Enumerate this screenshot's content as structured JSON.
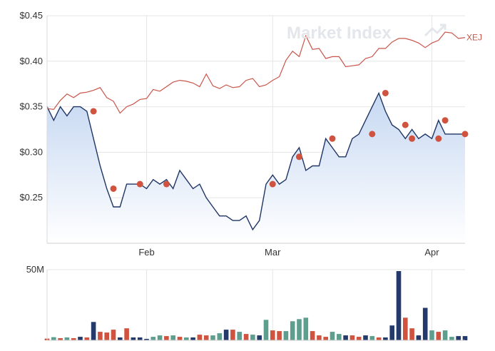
{
  "watermark": "Market Index",
  "colors": {
    "price_line": "#1f3564",
    "area_top": "#c6d8f2",
    "area_bottom": "#ffffff",
    "index_line": "#c9554a",
    "marker": "#d0533f",
    "vol_navy": "#233a6b",
    "vol_red": "#d0533f",
    "vol_teal": "#5e9e8e",
    "grid": "#e6e6e6"
  },
  "chart_data": [
    {
      "type": "line",
      "title": "",
      "ylim": [
        0.2,
        0.45
      ],
      "yticks": [
        0.25,
        0.3,
        0.35,
        0.4,
        0.45
      ],
      "ytick_labels": [
        "$0.25",
        "$0.30",
        "$0.35",
        "$0.40",
        "$0.45"
      ],
      "xlim": [
        0,
        63
      ],
      "xticks": [
        {
          "x": 15,
          "label": "Feb"
        },
        {
          "x": 34,
          "label": "Mar"
        },
        {
          "x": 58,
          "label": "Apr"
        }
      ],
      "grid": true,
      "series": [
        {
          "kind": "area",
          "values": [
            0.35,
            0.335,
            0.35,
            0.34,
            0.35,
            0.35,
            0.345,
            0.315,
            0.285,
            0.26,
            0.24,
            0.24,
            0.265,
            0.265,
            0.265,
            0.26,
            0.27,
            0.265,
            0.27,
            0.26,
            0.28,
            0.27,
            0.26,
            0.265,
            0.25,
            0.24,
            0.23,
            0.23,
            0.225,
            0.225,
            0.23,
            0.215,
            0.225,
            0.265,
            0.275,
            0.265,
            0.27,
            0.295,
            0.305,
            0.28,
            0.285,
            0.285,
            0.315,
            0.305,
            0.295,
            0.295,
            0.315,
            0.32,
            0.335,
            0.35,
            0.365,
            0.345,
            0.33,
            0.325,
            0.315,
            0.325,
            0.315,
            0.32,
            0.315,
            0.335,
            0.32,
            0.32,
            0.32,
            0.32
          ]
        },
        {
          "kind": "line",
          "name": "XEJ",
          "values": [
            0.348,
            0.347,
            0.357,
            0.364,
            0.36,
            0.365,
            0.366,
            0.368,
            0.371,
            0.36,
            0.356,
            0.343,
            0.35,
            0.353,
            0.358,
            0.359,
            0.369,
            0.367,
            0.372,
            0.377,
            0.379,
            0.378,
            0.376,
            0.372,
            0.386,
            0.373,
            0.37,
            0.374,
            0.371,
            0.372,
            0.379,
            0.381,
            0.372,
            0.374,
            0.379,
            0.383,
            0.401,
            0.411,
            0.405,
            0.428,
            0.413,
            0.414,
            0.403,
            0.405,
            0.405,
            0.394,
            0.395,
            0.396,
            0.403,
            0.405,
            0.414,
            0.414,
            0.421,
            0.425,
            0.425,
            0.423,
            0.42,
            0.415,
            0.42,
            0.423,
            0.432,
            0.431,
            0.425,
            0.426
          ]
        }
      ],
      "markers": [
        {
          "x": 7,
          "y": 0.345
        },
        {
          "x": 10,
          "y": 0.26
        },
        {
          "x": 14,
          "y": 0.265
        },
        {
          "x": 18,
          "y": 0.265
        },
        {
          "x": 34,
          "y": 0.265
        },
        {
          "x": 38,
          "y": 0.295
        },
        {
          "x": 43,
          "y": 0.315
        },
        {
          "x": 49,
          "y": 0.32
        },
        {
          "x": 51,
          "y": 0.365
        },
        {
          "x": 54,
          "y": 0.33
        },
        {
          "x": 55,
          "y": 0.315
        },
        {
          "x": 59,
          "y": 0.315
        },
        {
          "x": 60,
          "y": 0.335
        },
        {
          "x": 63,
          "y": 0.32
        }
      ]
    },
    {
      "type": "bar",
      "title": "",
      "ylim": [
        0,
        50
      ],
      "yticks": [
        50
      ],
      "ytick_labels": [
        "50M"
      ],
      "xlim": [
        0,
        63
      ],
      "grid": true,
      "values": [
        1.2,
        2.2,
        1.5,
        2.0,
        1.5,
        2.5,
        2.0,
        13.0,
        6.0,
        5.5,
        7.5,
        2.0,
        8.5,
        2.0,
        2.0,
        1.0,
        2.5,
        3.5,
        3.0,
        3.5,
        2.5,
        2.0,
        2.0,
        4.0,
        3.5,
        3.5,
        5.0,
        7.5,
        7.5,
        6.0,
        4.5,
        4.0,
        3.5,
        14.5,
        7.0,
        6.5,
        6.5,
        13.5,
        15.0,
        16.0,
        6.5,
        3.5,
        2.5,
        6.0,
        4.5,
        3.5,
        3.5,
        2.5,
        3.5,
        3.0,
        2.0,
        2.0,
        10.5,
        49.0,
        16.0,
        8.5,
        3.5,
        23.0,
        7.0,
        6.0,
        7.0,
        2.5,
        3.0,
        3.0
      ],
      "colors": [
        "vol_red",
        "vol_teal",
        "vol_red",
        "vol_teal",
        "vol_red",
        "vol_navy",
        "vol_red",
        "vol_navy",
        "vol_red",
        "vol_red",
        "vol_red",
        "vol_navy",
        "vol_red",
        "vol_navy",
        "vol_navy",
        "vol_navy",
        "vol_teal",
        "vol_teal",
        "vol_red",
        "vol_teal",
        "vol_red",
        "vol_teal",
        "vol_navy",
        "vol_red",
        "vol_red",
        "vol_teal",
        "vol_teal",
        "vol_navy",
        "vol_red",
        "vol_teal",
        "vol_red",
        "vol_teal",
        "vol_navy",
        "vol_teal",
        "vol_red",
        "vol_red",
        "vol_teal",
        "vol_teal",
        "vol_teal",
        "vol_teal",
        "vol_red",
        "vol_red",
        "vol_red",
        "vol_teal",
        "vol_teal",
        "vol_navy",
        "vol_red",
        "vol_red",
        "vol_navy",
        "vol_teal",
        "vol_red",
        "vol_navy",
        "vol_navy",
        "vol_navy",
        "vol_red",
        "vol_red",
        "vol_navy",
        "vol_navy",
        "vol_teal",
        "vol_red",
        "vol_teal",
        "vol_teal",
        "vol_navy",
        "vol_navy"
      ]
    }
  ]
}
